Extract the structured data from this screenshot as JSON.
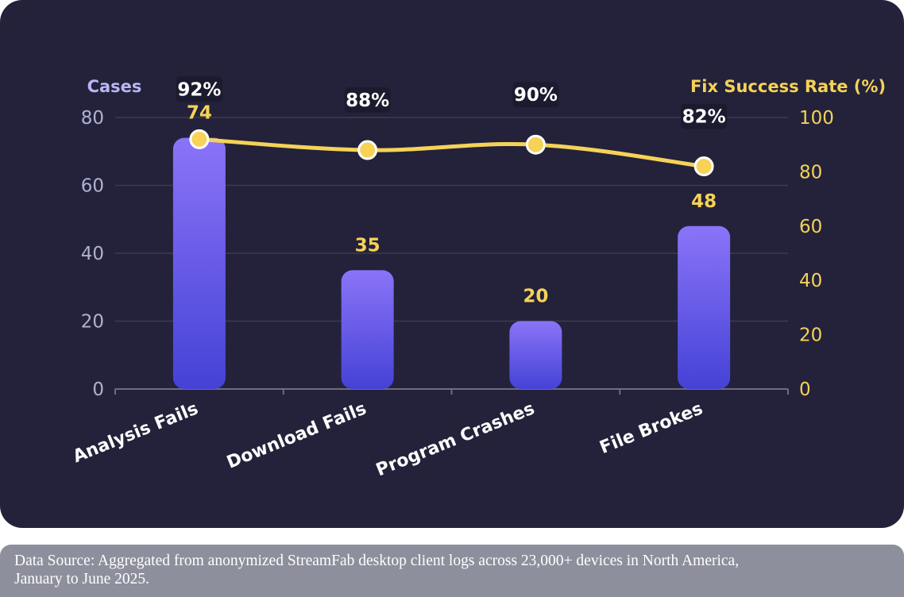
{
  "chart_data": {
    "type": "bar",
    "categories": [
      "Analysis Fails",
      "Download Fails",
      "Program Crashes",
      "File Brokes"
    ],
    "series": [
      {
        "type": "bar",
        "axis": "left",
        "values": [
          74,
          35,
          20,
          48
        ]
      },
      {
        "type": "line",
        "axis": "right",
        "values": [
          92,
          88,
          90,
          82
        ],
        "value_labels": [
          "92%",
          "88%",
          "90%",
          "82%"
        ]
      }
    ],
    "left_axis": {
      "label": "Cases",
      "ticks": [
        "0",
        "20",
        "40",
        "60",
        "80"
      ],
      "range": [
        0,
        80
      ]
    },
    "right_axis": {
      "label": "Fix Success Rate (%)",
      "ticks": [
        "0",
        "20",
        "40",
        "60",
        "80",
        "100"
      ],
      "range": [
        0,
        100
      ]
    },
    "grid": true,
    "colors": {
      "background": "#23223a",
      "bar_top": "#8a74f8",
      "bar_bottom": "#4542d6",
      "line": "#f6d257",
      "bar_label": "#f6d257",
      "line_label": "#ffffff",
      "left_axis_text": "#aeb2d0",
      "right_axis_text": "#f6d257",
      "left_axis_title": "#b9b6f4",
      "gridline": "#3a3a55"
    }
  },
  "footer": {
    "source_line1": "Data Source: Aggregated from anonymized StreamFab desktop client logs across 23,000+ devices in North America,",
    "source_line2": "January to June 2025."
  }
}
